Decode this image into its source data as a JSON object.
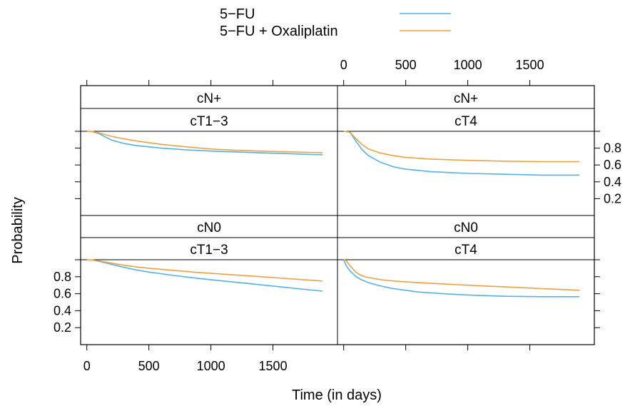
{
  "colors": {
    "5fu": "#4FB3E8",
    "5fu_oxali": "#F0A040",
    "frame": "#000000",
    "background": "#ffffff"
  },
  "chart_data": {
    "type": "line",
    "layout": "lattice-2x2",
    "xlabel": "Time (in days)",
    "ylabel": "Probability",
    "xlim": [
      -50,
      2020
    ],
    "ylim": [
      0,
      1
    ],
    "x_ticks": [
      0,
      500,
      1000,
      1500
    ],
    "y_ticks": [
      0.2,
      0.4,
      0.6,
      0.8
    ],
    "legend": {
      "placement": "top-center",
      "entries": [
        {
          "label": "5−FU",
          "color_key": "5fu"
        },
        {
          "label": "5−FU + Oxaliplatin",
          "color_key": "5fu_oxali"
        }
      ]
    },
    "panels": [
      {
        "strip_top": "cN+",
        "strip_bottom": "cT1−3",
        "row": "top",
        "col": "left",
        "series": [
          {
            "name": "5−FU",
            "color_key": "5fu",
            "x": [
              0,
              50,
              100,
              200,
              300,
              400,
              600,
              800,
              1000,
              1200,
              1500,
              1900
            ],
            "y": [
              1.0,
              0.995,
              0.97,
              0.895,
              0.855,
              0.83,
              0.8,
              0.78,
              0.765,
              0.755,
              0.74,
              0.72
            ]
          },
          {
            "name": "5−FU + Oxaliplatin",
            "color_key": "5fu_oxali",
            "x": [
              0,
              50,
              100,
              200,
              300,
              400,
              600,
              800,
              1000,
              1200,
              1500,
              1900
            ],
            "y": [
              1.0,
              0.997,
              0.98,
              0.94,
              0.91,
              0.885,
              0.845,
              0.815,
              0.79,
              0.775,
              0.76,
              0.745
            ]
          }
        ]
      },
      {
        "strip_top": "cN+",
        "strip_bottom": "cT4",
        "row": "top",
        "col": "right",
        "series": [
          {
            "name": "5−FU",
            "color_key": "5fu",
            "x": [
              0,
              50,
              100,
              150,
              200,
              300,
              400,
              500,
              700,
              1000,
              1300,
              1600,
              1900
            ],
            "y": [
              1.0,
              0.99,
              0.88,
              0.78,
              0.71,
              0.63,
              0.58,
              0.55,
              0.52,
              0.5,
              0.49,
              0.48,
              0.48
            ]
          },
          {
            "name": "5−FU + Oxaliplatin",
            "color_key": "5fu_oxali",
            "x": [
              0,
              50,
              100,
              150,
              200,
              300,
              400,
              500,
              700,
              1000,
              1300,
              1600,
              1900
            ],
            "y": [
              1.0,
              0.99,
              0.91,
              0.84,
              0.79,
              0.74,
              0.71,
              0.69,
              0.67,
              0.655,
              0.645,
              0.64,
              0.64
            ]
          }
        ]
      },
      {
        "strip_top": "cN0",
        "strip_bottom": "cT1−3",
        "row": "bottom",
        "col": "left",
        "series": [
          {
            "name": "5−FU",
            "color_key": "5fu",
            "x": [
              0,
              50,
              100,
              200,
              300,
              400,
              500,
              700,
              900,
              1100,
              1300,
              1500,
              1700,
              1900
            ],
            "y": [
              1.0,
              0.995,
              0.98,
              0.945,
              0.91,
              0.88,
              0.855,
              0.815,
              0.78,
              0.75,
              0.72,
              0.69,
              0.66,
              0.63
            ]
          },
          {
            "name": "5−FU + Oxaliplatin",
            "color_key": "5fu_oxali",
            "x": [
              0,
              50,
              100,
              200,
              300,
              400,
              500,
              700,
              900,
              1100,
              1300,
              1500,
              1700,
              1900
            ],
            "y": [
              1.0,
              0.997,
              0.985,
              0.96,
              0.935,
              0.915,
              0.9,
              0.875,
              0.85,
              0.83,
              0.81,
              0.79,
              0.77,
              0.75
            ]
          }
        ]
      },
      {
        "strip_top": "cN0",
        "strip_bottom": "cT4",
        "row": "bottom",
        "col": "right",
        "series": [
          {
            "name": "5−FU",
            "color_key": "5fu",
            "x": [
              0,
              20,
              50,
              100,
              150,
              200,
              300,
              400,
              600,
              800,
              1000,
              1300,
              1600,
              1900
            ],
            "y": [
              1.0,
              0.93,
              0.87,
              0.8,
              0.76,
              0.73,
              0.69,
              0.66,
              0.62,
              0.6,
              0.585,
              0.57,
              0.565,
              0.565
            ]
          },
          {
            "name": "5−FU + Oxaliplatin",
            "color_key": "5fu_oxali",
            "x": [
              0,
              20,
              50,
              100,
              150,
              200,
              300,
              400,
              600,
              800,
              1000,
              1300,
              1600,
              1900
            ],
            "y": [
              1.0,
              0.99,
              0.93,
              0.85,
              0.81,
              0.79,
              0.765,
              0.75,
              0.73,
              0.715,
              0.7,
              0.68,
              0.66,
              0.64
            ]
          }
        ]
      }
    ]
  }
}
